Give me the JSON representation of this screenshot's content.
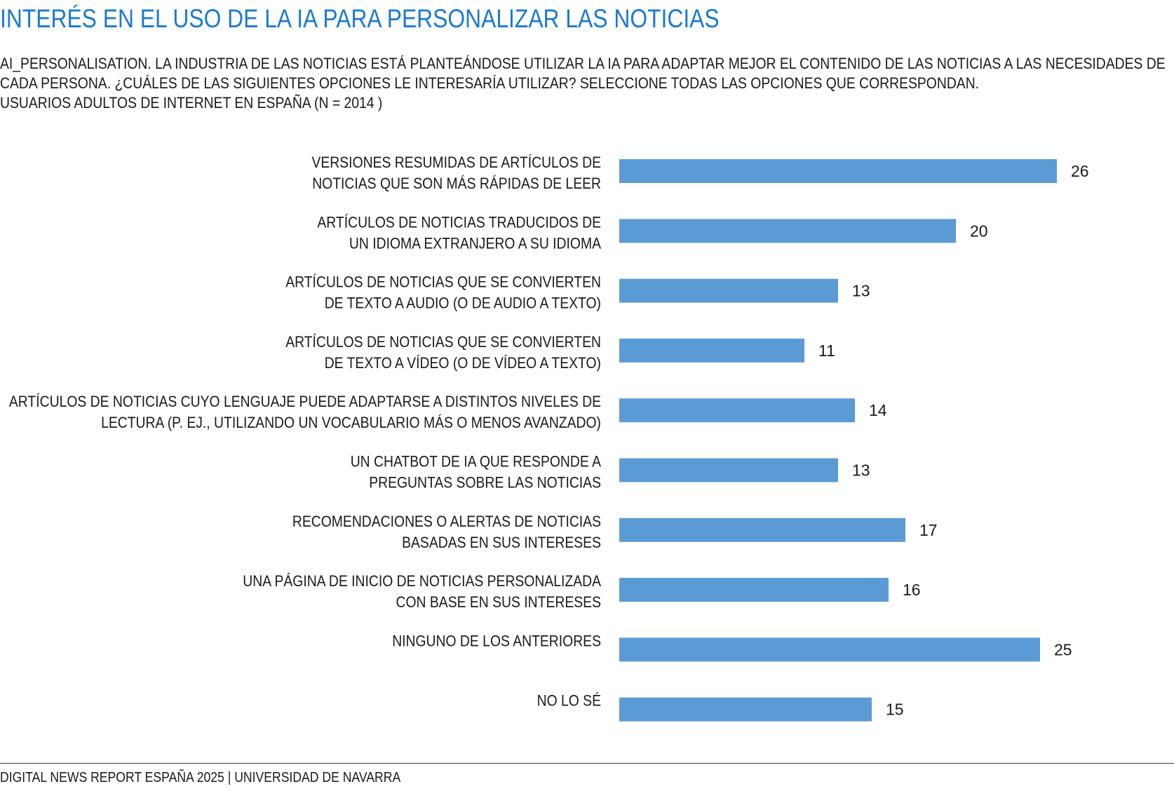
{
  "title": "INTERÉS EN EL USO DE LA IA PARA PERSONALIZAR LAS NOTICIAS",
  "subtitle_lines": [
    "AI_PERSONALISATION. LA INDUSTRIA DE LAS NOTICIAS ESTÁ PLANTEÁNDOSE UTILIZAR LA IA PARA ADAPTAR MEJOR EL CONTENIDO DE LAS NOTICIAS A LAS NECESIDADES DE",
    "CADA PERSONA. ¿CUÁLES DE LAS SIGUIENTES OPCIONES LE INTERESARÍA UTILIZAR? SELECCIONE TODAS LAS OPCIONES QUE CORRESPONDAN.",
    "USUARIOS ADULTOS DE INTERNET EN ESPAÑA (N = 2014 )"
  ],
  "footer": "DIGITAL NEWS REPORT ESPAÑA 2025 | UNIVERSIDAD DE NAVARRA",
  "colors": {
    "bar": "#5b9bd5",
    "title": "#1a7ad3"
  },
  "chart_data": {
    "type": "bar",
    "orientation": "horizontal",
    "categories": [
      [
        "VERSIONES RESUMIDAS DE ARTÍCULOS DE",
        "NOTICIAS QUE SON MÁS RÁPIDAS DE LEER"
      ],
      [
        "ARTÍCULOS DE NOTICIAS TRADUCIDOS DE",
        "UN IDIOMA EXTRANJERO A SU IDIOMA"
      ],
      [
        "ARTÍCULOS DE NOTICIAS QUE SE CONVIERTEN",
        "DE TEXTO A AUDIO (O DE AUDIO A TEXTO)"
      ],
      [
        "ARTÍCULOS DE NOTICIAS QUE SE CONVIERTEN",
        "DE TEXTO A VÍDEO (O DE VÍDEO A TEXTO)"
      ],
      [
        "ARTÍCULOS DE NOTICIAS CUYO LENGUAJE PUEDE ADAPTARSE A DISTINTOS NIVELES DE",
        "LECTURA (P. EJ., UTILIZANDO UN VOCABULARIO MÁS O MENOS AVANZADO)"
      ],
      [
        "UN CHATBOT DE IA QUE RESPONDE A",
        "PREGUNTAS SOBRE LAS NOTICIAS"
      ],
      [
        "RECOMENDACIONES O ALERTAS DE NOTICIAS",
        "BASADAS EN SUS INTERESES"
      ],
      [
        "UNA PÁGINA DE INICIO DE NOTICIAS PERSONALIZADA",
        "CON BASE EN SUS INTERESES"
      ],
      [
        "NINGUNO DE LOS ANTERIORES"
      ],
      [
        "NO LO SÉ"
      ]
    ],
    "values": [
      26,
      20,
      13,
      11,
      14,
      13,
      17,
      16,
      25,
      15
    ],
    "xlim": [
      0,
      26
    ],
    "grid": false,
    "legend": "none"
  }
}
